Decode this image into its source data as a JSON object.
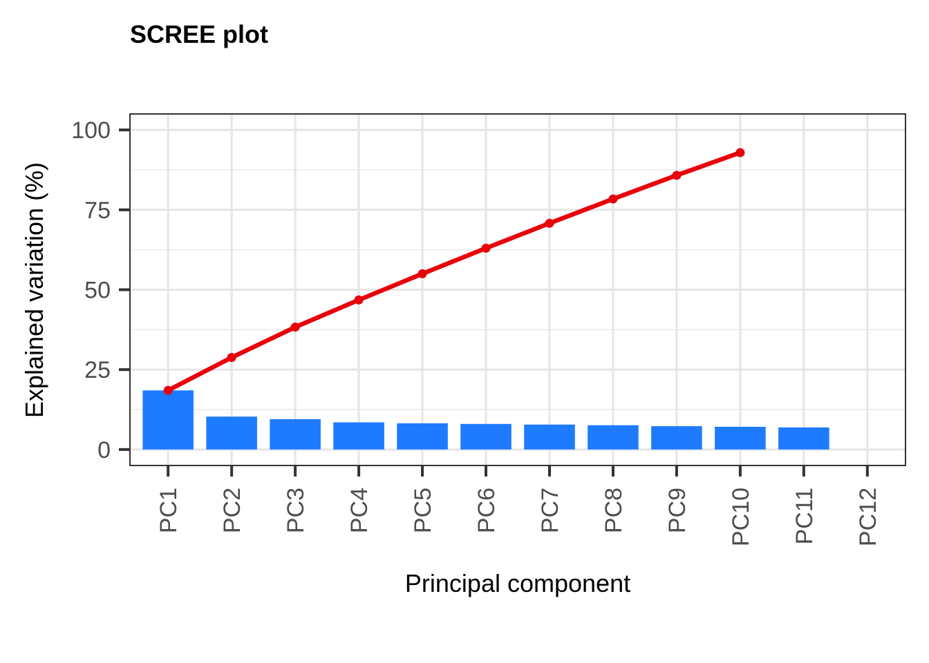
{
  "chart_data": {
    "type": "bar",
    "title": "SCREE plot",
    "xlabel": "Principal component",
    "ylabel": "Explained variation (%)",
    "categories": [
      "PC1",
      "PC2",
      "PC3",
      "PC4",
      "PC5",
      "PC6",
      "PC7",
      "PC8",
      "PC9",
      "PC10",
      "PC11",
      "PC12"
    ],
    "ylim": [
      -5,
      105
    ],
    "y_ticks": [
      0,
      25,
      50,
      75,
      100
    ],
    "grid": true,
    "series": [
      {
        "type": "bar",
        "values": [
          18.5,
          10.3,
          9.5,
          8.5,
          8.2,
          8.0,
          7.8,
          7.6,
          7.3,
          7.1,
          6.9,
          null
        ],
        "color": "#1e7bff"
      },
      {
        "type": "line",
        "values": [
          18.5,
          28.8,
          38.3,
          46.8,
          55.0,
          63.0,
          70.8,
          78.4,
          85.8,
          92.9,
          null,
          null
        ],
        "color": "#e8000b"
      }
    ]
  }
}
